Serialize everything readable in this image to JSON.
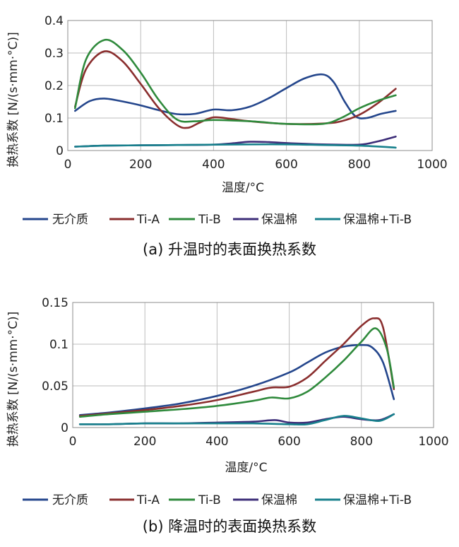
{
  "chart_data": [
    {
      "type": "line",
      "caption": "(a) 升温时的表面换热系数",
      "xlabel": "温度/°C",
      "ylabel": "换热系数 [N/(s·mm·°C)]",
      "xlim": [
        0,
        1000
      ],
      "ylim": [
        0,
        0.4
      ],
      "xticks": [
        0,
        200,
        400,
        600,
        800,
        1000
      ],
      "yticks": [
        0,
        0.1,
        0.2,
        0.3,
        0.4
      ],
      "xtick_labels": [
        "0",
        "200",
        "400",
        "600",
        "800",
        "1000"
      ],
      "ytick_labels": [
        "0",
        "0.1",
        "0.2",
        "0.3",
        "0.4"
      ],
      "legend_position": "bottom",
      "series": [
        {
          "name": "无介质",
          "color": "#24468c",
          "x": [
            20,
            60,
            100,
            150,
            200,
            250,
            300,
            350,
            400,
            450,
            500,
            550,
            600,
            650,
            700,
            730,
            760,
            790,
            820,
            860,
            900
          ],
          "y": [
            0.122,
            0.152,
            0.16,
            0.151,
            0.139,
            0.124,
            0.112,
            0.113,
            0.126,
            0.124,
            0.135,
            0.16,
            0.192,
            0.222,
            0.234,
            0.21,
            0.15,
            0.105,
            0.1,
            0.113,
            0.122
          ]
        },
        {
          "name": "Ti-A",
          "color": "#8a2e2e",
          "x": [
            20,
            50,
            100,
            150,
            200,
            250,
            300,
            330,
            360,
            400,
            450,
            500,
            600,
            700,
            750,
            800,
            850,
            900
          ],
          "y": [
            0.135,
            0.25,
            0.305,
            0.275,
            0.205,
            0.13,
            0.078,
            0.07,
            0.085,
            0.102,
            0.097,
            0.09,
            0.082,
            0.083,
            0.09,
            0.11,
            0.145,
            0.19
          ]
        },
        {
          "name": "Ti-B",
          "color": "#2f8a3c",
          "x": [
            20,
            50,
            100,
            150,
            200,
            250,
            300,
            350,
            400,
            500,
            600,
            700,
            750,
            800,
            850,
            900
          ],
          "y": [
            0.13,
            0.28,
            0.34,
            0.31,
            0.24,
            0.155,
            0.095,
            0.09,
            0.094,
            0.09,
            0.082,
            0.082,
            0.1,
            0.13,
            0.153,
            0.17
          ]
        },
        {
          "name": "保温棉",
          "color": "#3c2d78",
          "x": [
            20,
            100,
            200,
            300,
            400,
            450,
            500,
            550,
            600,
            700,
            800,
            850,
            900
          ],
          "y": [
            0.012,
            0.015,
            0.016,
            0.017,
            0.018,
            0.022,
            0.027,
            0.026,
            0.023,
            0.019,
            0.018,
            0.028,
            0.043
          ]
        },
        {
          "name": "保温棉+Ti-B",
          "color": "#17808c",
          "x": [
            20,
            100,
            200,
            300,
            400,
            500,
            600,
            700,
            800,
            900
          ],
          "y": [
            0.012,
            0.015,
            0.016,
            0.017,
            0.018,
            0.019,
            0.019,
            0.017,
            0.015,
            0.009
          ]
        }
      ]
    },
    {
      "type": "line",
      "caption": "(b) 降温时的表面换热系数",
      "xlabel": "温度/°C",
      "ylabel": "换热系数 [N/(s·mm·°C)]",
      "xlim": [
        0,
        1000
      ],
      "ylim": [
        0,
        0.15
      ],
      "xticks": [
        0,
        200,
        400,
        600,
        800,
        1000
      ],
      "yticks": [
        0,
        0.05,
        0.1,
        0.15
      ],
      "xtick_labels": [
        "0",
        "200",
        "400",
        "600",
        "800",
        "1000"
      ],
      "ytick_labels": [
        "0",
        "0.05",
        "0.1",
        "0.15"
      ],
      "legend_position": "bottom",
      "series": [
        {
          "name": "无介质",
          "color": "#24468c",
          "x": [
            20,
            100,
            200,
            300,
            400,
            500,
            600,
            650,
            700,
            750,
            800,
            830,
            860,
            890
          ],
          "y": [
            0.015,
            0.018,
            0.023,
            0.029,
            0.038,
            0.05,
            0.066,
            0.078,
            0.09,
            0.097,
            0.099,
            0.096,
            0.078,
            0.034
          ]
        },
        {
          "name": "Ti-A",
          "color": "#8a2e2e",
          "x": [
            20,
            100,
            200,
            300,
            400,
            500,
            550,
            600,
            650,
            700,
            750,
            800,
            835,
            860,
            890
          ],
          "y": [
            0.014,
            0.017,
            0.021,
            0.026,
            0.033,
            0.043,
            0.048,
            0.049,
            0.06,
            0.08,
            0.1,
            0.122,
            0.131,
            0.12,
            0.046
          ]
        },
        {
          "name": "Ti-B",
          "color": "#2f8a3c",
          "x": [
            20,
            100,
            200,
            300,
            400,
            500,
            550,
            600,
            650,
            700,
            750,
            800,
            840,
            870,
            890
          ],
          "y": [
            0.013,
            0.016,
            0.019,
            0.022,
            0.026,
            0.032,
            0.036,
            0.035,
            0.043,
            0.06,
            0.08,
            0.103,
            0.119,
            0.095,
            0.048
          ]
        },
        {
          "name": "保温棉",
          "color": "#3c2d78",
          "x": [
            20,
            100,
            200,
            300,
            400,
            500,
            560,
            600,
            650,
            700,
            750,
            800,
            850,
            890
          ],
          "y": [
            0.004,
            0.004,
            0.005,
            0.005,
            0.006,
            0.007,
            0.009,
            0.006,
            0.006,
            0.01,
            0.013,
            0.01,
            0.009,
            0.016
          ]
        },
        {
          "name": "保温棉+Ti-B",
          "color": "#17808c",
          "x": [
            20,
            100,
            200,
            300,
            400,
            500,
            600,
            650,
            700,
            750,
            800,
            850,
            890
          ],
          "y": [
            0.004,
            0.004,
            0.005,
            0.005,
            0.005,
            0.005,
            0.004,
            0.004,
            0.009,
            0.014,
            0.011,
            0.008,
            0.016
          ]
        }
      ]
    }
  ]
}
